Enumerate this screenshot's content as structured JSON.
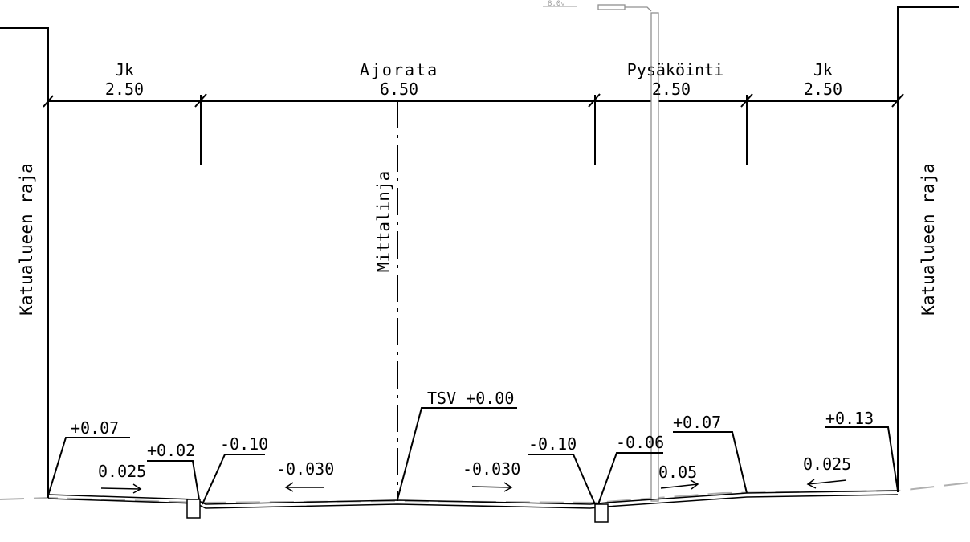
{
  "sections": [
    {
      "name": "Jk",
      "width": "2.50"
    },
    {
      "name": "Ajorata",
      "width": "6.50"
    },
    {
      "name": "Pysäköinti",
      "width": "2.50"
    },
    {
      "name": "Jk",
      "width": "2.50"
    }
  ],
  "boundary_left": "Katualueen raja",
  "boundary_right": "Katualueen raja",
  "centerline": "Mittalinja",
  "reference": "TSV +0.00",
  "elevations": [
    "+0.07",
    "+0.02",
    "-0.10",
    "-0.10",
    "-0.06",
    "+0.07",
    "+0.13"
  ],
  "slopes": [
    "0.025",
    "-0.030",
    "-0.030",
    "0.05",
    "0.025"
  ],
  "top_marker": "8.0▽"
}
